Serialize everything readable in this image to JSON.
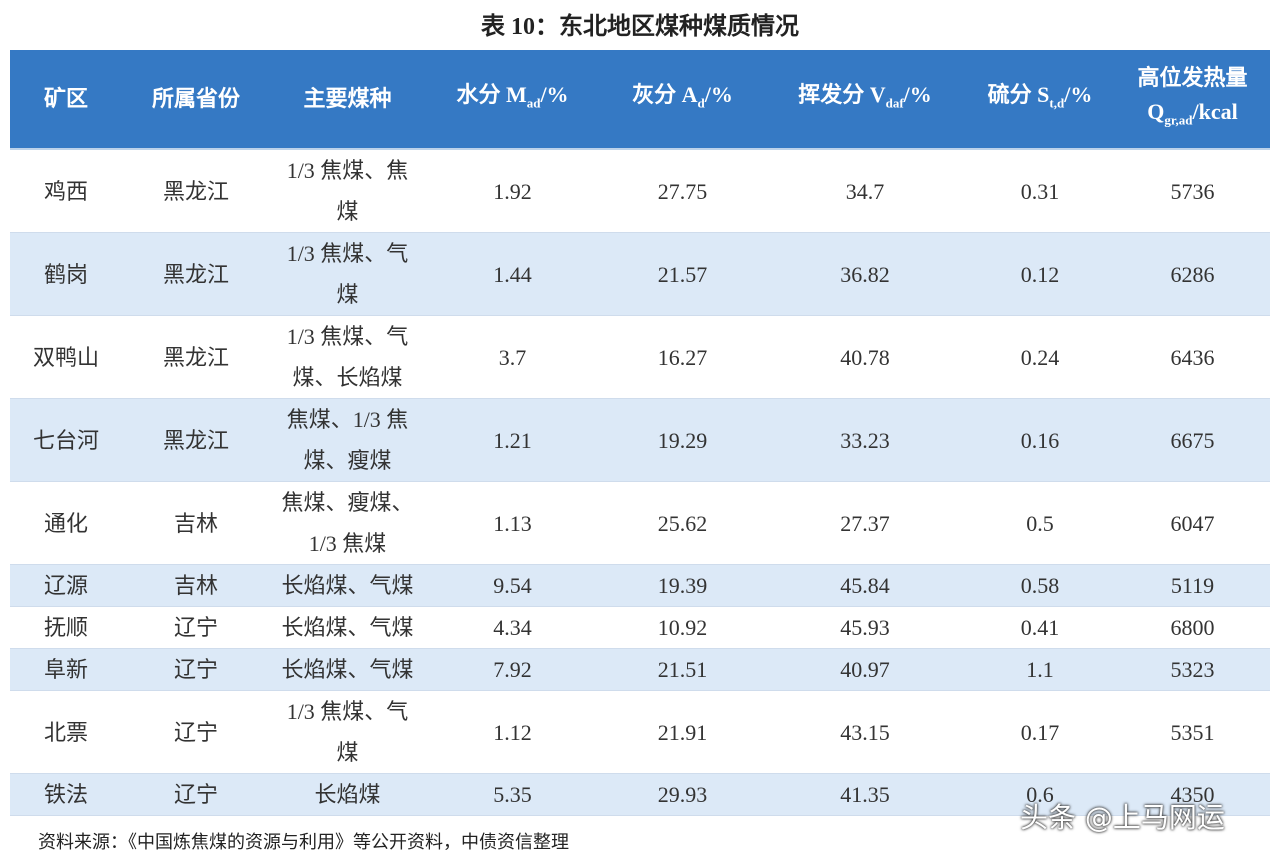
{
  "title": "表 10：东北地区煤种煤质情况",
  "table": {
    "header": [
      {
        "main": "矿区"
      },
      {
        "main": "所属省份"
      },
      {
        "main": "主要煤种"
      },
      {
        "main": "水分 M",
        "sub": "ad",
        "tail": "/%"
      },
      {
        "main": "灰分 A",
        "sub": "d",
        "tail": "/%"
      },
      {
        "main": "挥发分 V",
        "sub": "daf",
        "tail": "/%"
      },
      {
        "main": "硫分 S",
        "sub": "t,d",
        "tail": "/%"
      },
      {
        "pre": "高位发热量",
        "main": "Q",
        "sub": "gr,ad",
        "tail": "/kcal"
      }
    ],
    "rows": [
      [
        "鸡西",
        "黑龙江",
        "1/3 焦煤、焦煤",
        "1.92",
        "27.75",
        "34.7",
        "0.31",
        "5736"
      ],
      [
        "鹤岗",
        "黑龙江",
        "1/3 焦煤、气煤",
        "1.44",
        "21.57",
        "36.82",
        "0.12",
        "6286"
      ],
      [
        "双鸭山",
        "黑龙江",
        "1/3 焦煤、气煤、长焰煤",
        "3.7",
        "16.27",
        "40.78",
        "0.24",
        "6436"
      ],
      [
        "七台河",
        "黑龙江",
        "焦煤、1/3 焦煤、瘦煤",
        "1.21",
        "19.29",
        "33.23",
        "0.16",
        "6675"
      ],
      [
        "通化",
        "吉林",
        "焦煤、瘦煤、1/3 焦煤",
        "1.13",
        "25.62",
        "27.37",
        "0.5",
        "6047"
      ],
      [
        "辽源",
        "吉林",
        "长焰煤、气煤",
        "9.54",
        "19.39",
        "45.84",
        "0.58",
        "5119"
      ],
      [
        "抚顺",
        "辽宁",
        "长焰煤、气煤",
        "4.34",
        "10.92",
        "45.93",
        "0.41",
        "6800"
      ],
      [
        "阜新",
        "辽宁",
        "长焰煤、气煤",
        "7.92",
        "21.51",
        "40.97",
        "1.1",
        "5323"
      ],
      [
        "北票",
        "辽宁",
        "1/3 焦煤、气煤",
        "1.12",
        "21.91",
        "43.15",
        "0.17",
        "5351"
      ],
      [
        "铁法",
        "辽宁",
        "长焰煤",
        "5.35",
        "29.93",
        "41.35",
        "0.6",
        "4350"
      ]
    ]
  },
  "source": "资料来源：《中国炼焦煤的资源与利用》等公开资料，中债资信整理",
  "watermark": "头条 @上马网运"
}
